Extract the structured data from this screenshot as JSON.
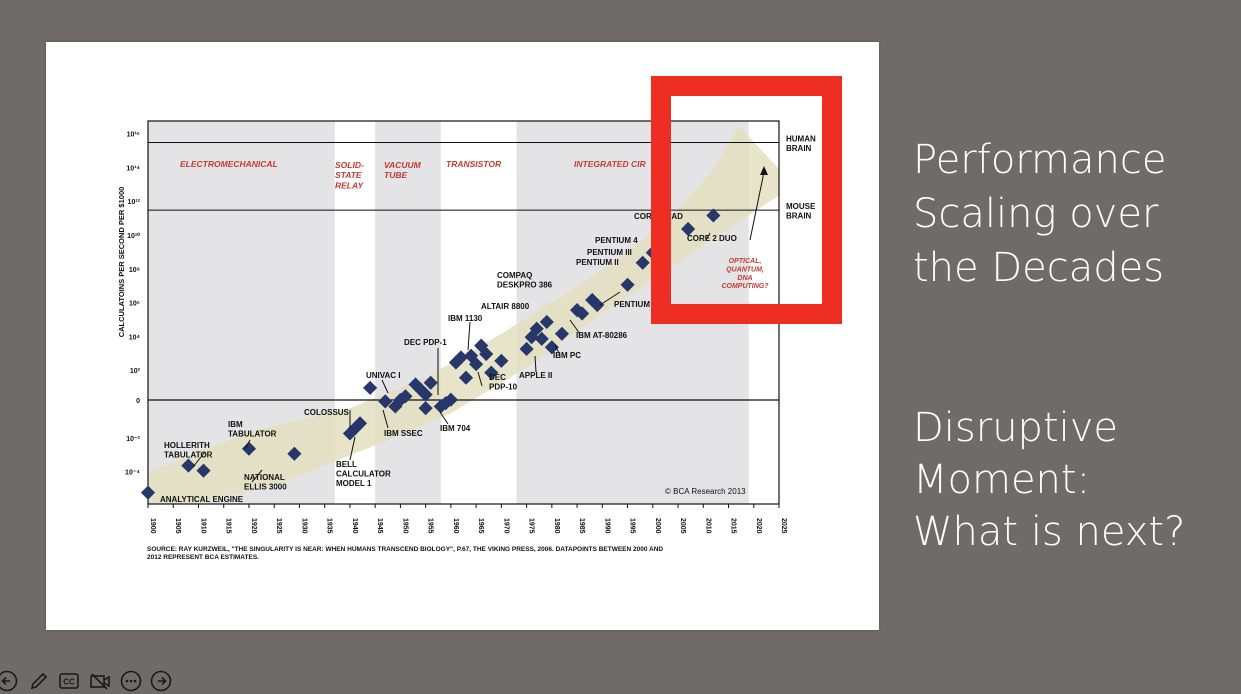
{
  "right_panel": {
    "heading_lines": [
      "Performance",
      "Scaling over",
      "the Decades"
    ],
    "subheading_lines": [
      "Disruptive",
      "Moment:",
      "What is next?"
    ]
  },
  "chart_data": {
    "type": "scatter",
    "ylabel": "CALCULATOINS PER SECOND PER $1000",
    "x_ticks": [
      "1900",
      "1905",
      "1910",
      "1915",
      "1920",
      "1925",
      "1930",
      "1935",
      "1940",
      "1945",
      "1950",
      "1955",
      "1960",
      "1965",
      "1970",
      "1975",
      "1980",
      "1985",
      "1990",
      "1995",
      "2000",
      "2005",
      "2010",
      "2015",
      "2020",
      "2025"
    ],
    "y_ticks": [
      "10¹⁶",
      "10¹⁴",
      "10¹²",
      "10¹⁰",
      "10⁸",
      "10⁶",
      "10⁴",
      "10²",
      "0",
      "10⁻²",
      "10⁻⁴"
    ],
    "y_exponents": [
      16,
      14,
      12,
      10,
      8,
      6,
      4,
      2,
      0,
      -2,
      -4
    ],
    "xlim": [
      1900,
      2025
    ],
    "eras": [
      {
        "label": "ELECTROMECHANICAL",
        "x0": 1900,
        "x1": 1937,
        "shaded": true
      },
      {
        "label": "SOLID-\nSTATE\nRELAY",
        "x0": 1937,
        "x1": 1945,
        "shaded": false
      },
      {
        "label": "VACUUM\nTUBE",
        "x0": 1945,
        "x1": 1958,
        "shaded": true
      },
      {
        "label": "TRANSISTOR",
        "x0": 1958,
        "x1": 1973,
        "shaded": false
      },
      {
        "label": "INTEGRATED CIR",
        "x0": 1973,
        "x1": 2019,
        "shaded": true
      }
    ],
    "reference_lines": [
      {
        "label": "HUMAN\nBRAIN",
        "y": 15
      },
      {
        "label": "MOUSE\nBRAIN",
        "y": 11
      }
    ],
    "points": [
      [
        1900,
        -5.6
      ],
      [
        1908,
        -4.0
      ],
      [
        1911,
        -4.3
      ],
      [
        1920,
        -3.0
      ],
      [
        1929,
        -3.3
      ],
      [
        1940,
        -2.1
      ],
      [
        1941,
        -1.8
      ],
      [
        1942,
        -1.5
      ],
      [
        1944,
        0.6
      ],
      [
        1947,
        -0.2
      ],
      [
        1949,
        -0.5
      ],
      [
        1950,
        0.0
      ],
      [
        1951,
        0.1
      ],
      [
        1953,
        0.8
      ],
      [
        1954,
        0.5
      ],
      [
        1955,
        0.2
      ],
      [
        1955,
        -0.6
      ],
      [
        1956,
        0.9
      ],
      [
        1958,
        -0.5
      ],
      [
        1959,
        -0.3
      ],
      [
        1960,
        -0.1
      ],
      [
        1961,
        2.1
      ],
      [
        1962,
        2.4
      ],
      [
        1963,
        1.2
      ],
      [
        1964,
        2.5
      ],
      [
        1965,
        2.0
      ],
      [
        1966,
        3.1
      ],
      [
        1967,
        2.6
      ],
      [
        1968,
        1.5
      ],
      [
        1970,
        2.2
      ],
      [
        1975,
        2.9
      ],
      [
        1976,
        3.6
      ],
      [
        1977,
        4.1
      ],
      [
        1978,
        3.5
      ],
      [
        1979,
        4.5
      ],
      [
        1980,
        3.0
      ],
      [
        1982,
        3.8
      ],
      [
        1985,
        5.2
      ],
      [
        1986,
        5.0
      ],
      [
        1988,
        5.8
      ],
      [
        1989,
        5.5
      ],
      [
        1995,
        6.7
      ],
      [
        1998,
        8.0
      ],
      [
        2000,
        8.6
      ],
      [
        2001,
        9.1
      ],
      [
        2007,
        10.0
      ],
      [
        2012,
        10.8
      ]
    ],
    "annotations": {
      "analytical_engine": "ANALYTICAL ENGINE",
      "hollerith": "HOLLERITH\nTABULATOR",
      "ibm_tabulator": "IBM\nTABULATOR",
      "national_ellis": "NATIONAL\nELLIS 3000",
      "colossus": "COLOSSUS",
      "bell": "BELL\nCALCULATOR\nMODEL 1",
      "univac": "UNIVAC I",
      "ibm_ssec": "IBM SSEC",
      "dec_pdp1": "DEC PDP-1",
      "ibm_704": "IBM 704",
      "ibm_1130": "IBM 1130",
      "dec_pdp10": "DEC\nPDP-10",
      "altair": "ALTAIR 8800",
      "apple_ii": "APPLE II",
      "compaq": "COMPAQ\nDESKPRO 386",
      "ibm_pc": "IBM PC",
      "ibm_at": "IBM AT-80286",
      "pentium_4": "PENTIUM 4",
      "pentium_3": "PENTIUM III",
      "pentium_2": "PENTIUM II",
      "pentium": "PENTIUM",
      "core_quad": "CORE QUAD",
      "core_2_duo": "CORE 2 DUO",
      "optical": "OPTICAL,\nQUANTUM,\nDNA\nCOMPUTING?",
      "copyright": "© BCA Research 2013"
    },
    "source_note": "SOURCE: RAY KURZWEIL, \"THE SINGULARITY IS NEAR: WHEN HUMANS TRANSCEND BIOLOGY\", P.67, THE VIKING PRESS, 2006. DATAPOINTS BETWEEN 2000 AND\n2012 REPRESENT BCA ESTIMATES.",
    "colors": {
      "marker": "#27376b",
      "band": "#e4dfbf",
      "era_label": "#c23b30",
      "era_shade": "#e4e4e6",
      "highlight": "#ee2d23"
    }
  },
  "toolbar": {
    "icons": [
      "previous-icon",
      "pen-icon",
      "captions-icon",
      "camera-off-icon",
      "more-icon",
      "next-icon"
    ],
    "cc_label": "CC"
  }
}
